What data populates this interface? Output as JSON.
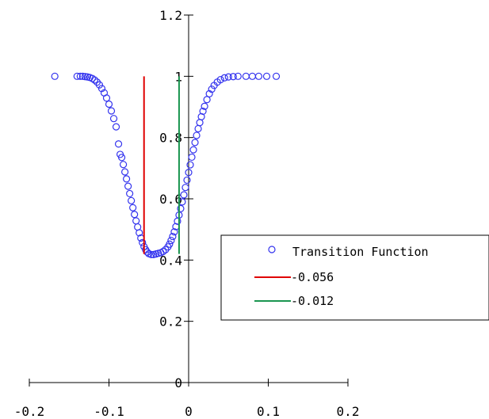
{
  "chart_data": {
    "type": "scatter",
    "title": "",
    "xlabel": "",
    "ylabel": "",
    "xlim": [
      -0.2,
      0.2
    ],
    "ylim": [
      0,
      1.2
    ],
    "x_ticks": [
      -0.2,
      -0.1,
      0,
      0.1,
      0.2
    ],
    "x_tick_labels": [
      "-0.2",
      "-0.1",
      "0",
      "0.1",
      "0.2"
    ],
    "y_ticks": [
      0,
      0.2,
      0.4,
      0.6,
      0.8,
      1,
      1.2
    ],
    "y_tick_labels": [
      "0",
      "0.2",
      "0.4",
      "0.6",
      "0.8",
      "1",
      "1.2"
    ],
    "grid": false,
    "legend_position": "right",
    "series": [
      {
        "name": "Transition Function",
        "kind": "scatter",
        "color": "#3333ee",
        "marker": "open-circle",
        "points": [
          [
            -0.168,
            1.0
          ],
          [
            -0.14,
            1.0
          ],
          [
            -0.136,
            1.0
          ],
          [
            -0.133,
            1.0
          ],
          [
            -0.13,
            0.999
          ],
          [
            -0.127,
            0.998
          ],
          [
            -0.124,
            0.996
          ],
          [
            -0.121,
            0.993
          ],
          [
            -0.118,
            0.988
          ],
          [
            -0.115,
            0.981
          ],
          [
            -0.112,
            0.972
          ],
          [
            -0.109,
            0.96
          ],
          [
            -0.106,
            0.946
          ],
          [
            -0.103,
            0.929
          ],
          [
            -0.1,
            0.909
          ],
          [
            -0.097,
            0.887
          ],
          [
            -0.094,
            0.862
          ],
          [
            -0.091,
            0.835
          ],
          [
            -0.088,
            0.779
          ],
          [
            -0.086,
            0.745
          ],
          [
            -0.084,
            0.735
          ],
          [
            -0.082,
            0.712
          ],
          [
            -0.08,
            0.688
          ],
          [
            -0.078,
            0.665
          ],
          [
            -0.076,
            0.641
          ],
          [
            -0.074,
            0.617
          ],
          [
            -0.072,
            0.594
          ],
          [
            -0.07,
            0.571
          ],
          [
            -0.068,
            0.549
          ],
          [
            -0.066,
            0.528
          ],
          [
            -0.064,
            0.508
          ],
          [
            -0.062,
            0.489
          ],
          [
            -0.06,
            0.472
          ],
          [
            -0.058,
            0.457
          ],
          [
            -0.056,
            0.444
          ],
          [
            -0.054,
            0.434
          ],
          [
            -0.052,
            0.426
          ],
          [
            -0.05,
            0.421
          ],
          [
            -0.047,
            0.418
          ],
          [
            -0.044,
            0.418
          ],
          [
            -0.041,
            0.42
          ],
          [
            -0.038,
            0.422
          ],
          [
            -0.035,
            0.424
          ],
          [
            -0.032,
            0.428
          ],
          [
            -0.029,
            0.434
          ],
          [
            -0.026,
            0.443
          ],
          [
            -0.024,
            0.452
          ],
          [
            -0.022,
            0.464
          ],
          [
            -0.02,
            0.477
          ],
          [
            -0.018,
            0.492
          ],
          [
            -0.016,
            0.509
          ],
          [
            -0.014,
            0.527
          ],
          [
            -0.012,
            0.547
          ],
          [
            -0.01,
            0.568
          ],
          [
            -0.008,
            0.59
          ],
          [
            -0.006,
            0.613
          ],
          [
            -0.004,
            0.637
          ],
          [
            -0.002,
            0.661
          ],
          [
            0.0,
            0.686
          ],
          [
            0.002,
            0.711
          ],
          [
            0.004,
            0.736
          ],
          [
            0.006,
            0.76
          ],
          [
            0.008,
            0.784
          ],
          [
            0.01,
            0.807
          ],
          [
            0.012,
            0.829
          ],
          [
            0.014,
            0.849
          ],
          [
            0.016,
            0.868
          ],
          [
            0.018,
            0.886
          ],
          [
            0.02,
            0.902
          ],
          [
            0.023,
            0.924
          ],
          [
            0.026,
            0.943
          ],
          [
            0.029,
            0.958
          ],
          [
            0.032,
            0.97
          ],
          [
            0.036,
            0.981
          ],
          [
            0.04,
            0.989
          ],
          [
            0.045,
            0.995
          ],
          [
            0.05,
            0.998
          ],
          [
            0.056,
            0.999
          ],
          [
            0.062,
            1.0
          ],
          [
            0.072,
            1.0
          ],
          [
            0.08,
            1.0
          ],
          [
            0.088,
            1.0
          ],
          [
            0.098,
            1.0
          ],
          [
            0.11,
            1.0
          ]
        ]
      },
      {
        "name": "-0.056",
        "kind": "vline",
        "color": "#e00000",
        "x": -0.056,
        "y_range": [
          0.42,
          1.0
        ]
      },
      {
        "name": "-0.012",
        "kind": "vline",
        "color": "#1a9650",
        "x": -0.012,
        "y_range": [
          0.42,
          1.0
        ]
      }
    ]
  }
}
